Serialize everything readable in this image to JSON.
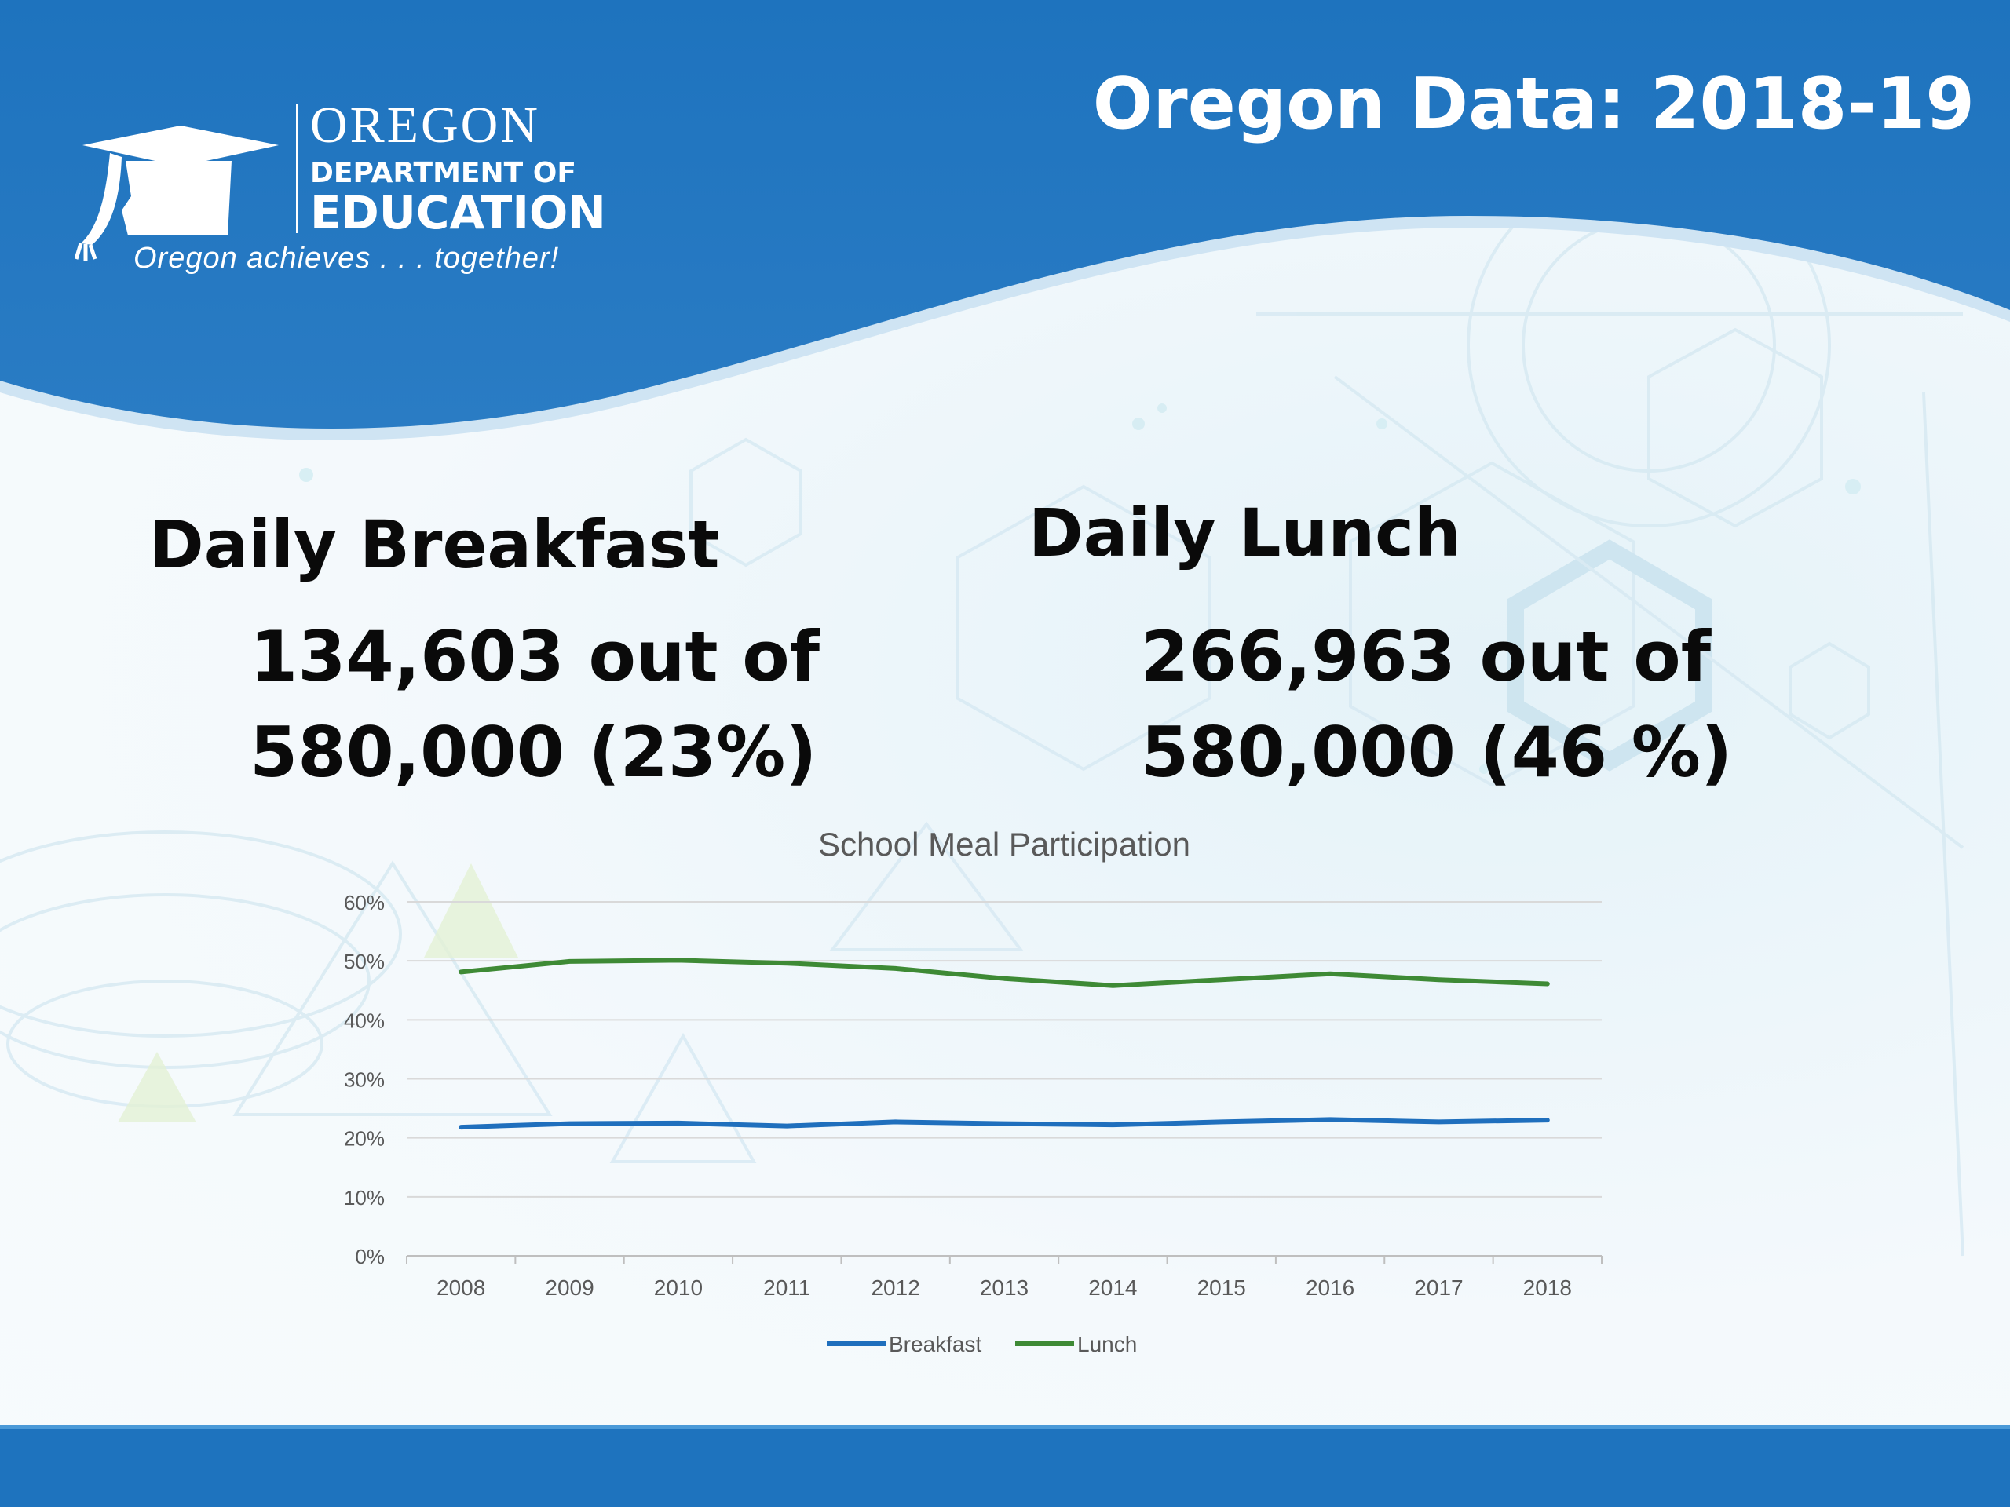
{
  "logo": {
    "name_line1": "OREGON",
    "name_line2": "DEPARTMENT OF",
    "name_line3": "EDUCATION",
    "tagline": "Oregon achieves . . . together!"
  },
  "slide_title": "Oregon Data: 2018-19",
  "breakfast": {
    "heading": "Daily Breakfast",
    "line1": "134,603 out of",
    "line2": "580,000 (23%)"
  },
  "lunch": {
    "heading": "Daily Lunch",
    "line1": "266,963 out of",
    "line2": "580,000 (46 %)"
  },
  "colors": {
    "header_blue": "#1e73be",
    "breakfast_line": "#1f6fbd",
    "lunch_line": "#3e8a35"
  },
  "chart_data": {
    "type": "line",
    "title": "School Meal Participation",
    "xlabel": "",
    "ylabel": "",
    "x": [
      "2008",
      "2009",
      "2010",
      "2011",
      "2012",
      "2013",
      "2014",
      "2015",
      "2016",
      "2017",
      "2018"
    ],
    "y_ticks": [
      "0%",
      "10%",
      "20%",
      "30%",
      "40%",
      "50%",
      "60%"
    ],
    "ylim": [
      0,
      60
    ],
    "series": [
      {
        "name": "Breakfast",
        "values": [
          21.8,
          22.4,
          22.5,
          22.0,
          22.7,
          22.4,
          22.2,
          22.7,
          23.1,
          22.7,
          23.0
        ]
      },
      {
        "name": "Lunch",
        "values": [
          48.1,
          49.9,
          50.1,
          49.6,
          48.7,
          47.0,
          45.8,
          46.8,
          47.8,
          46.8,
          46.1
        ]
      }
    ],
    "grid": true,
    "legend": "bottom"
  }
}
